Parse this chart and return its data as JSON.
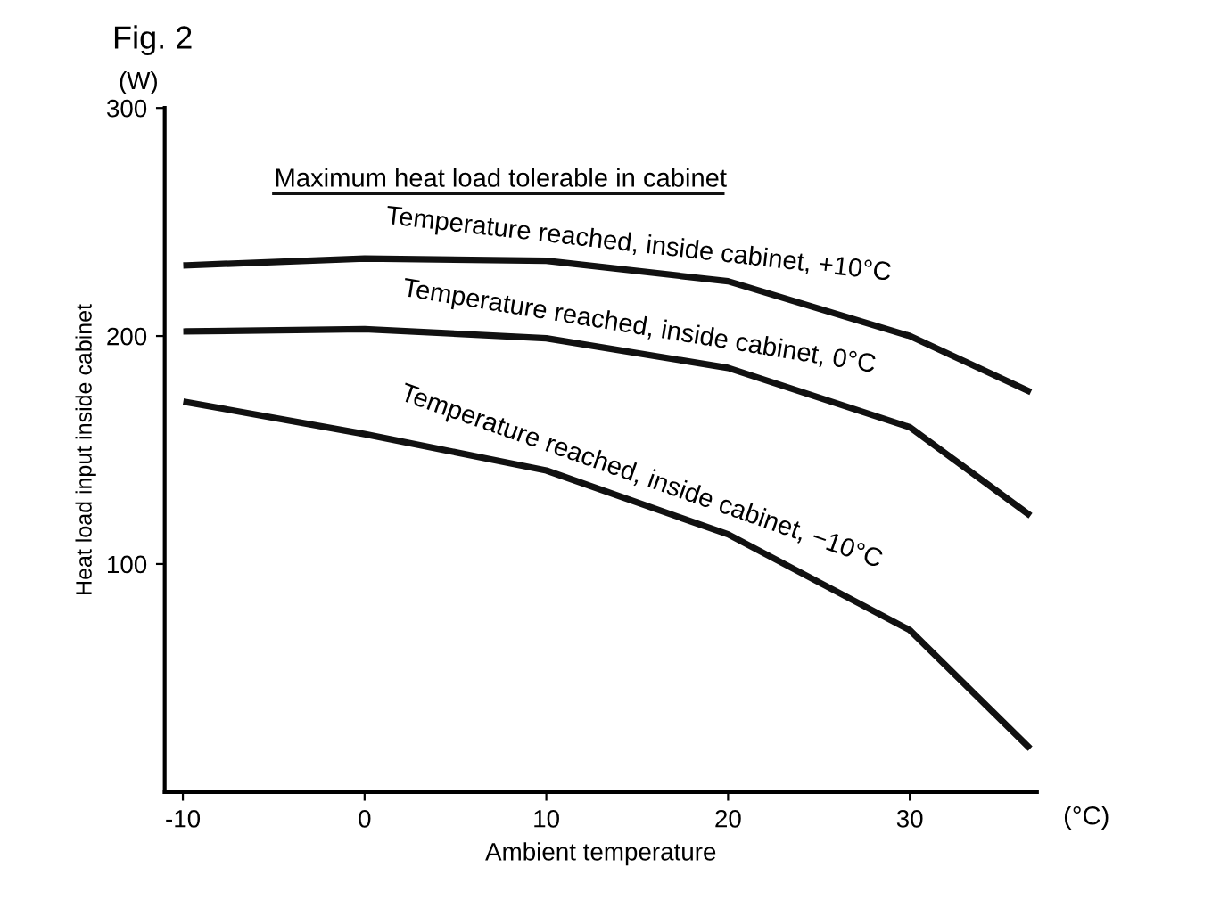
{
  "chart_data": {
    "type": "line",
    "title": "Fig. 2",
    "xlabel": "Ambient temperature",
    "ylabel": "Heat load input inside cabinet",
    "x": [
      -9.8,
      0,
      10,
      20,
      30,
      36.5
    ],
    "series": [
      {
        "name": "Temperature reached, inside cabinet, +10°C",
        "color": "#111111",
        "values": [
          231,
          234,
          233,
          224,
          200,
          176
        ]
      },
      {
        "name": "Temperature reached, inside cabinet, 0°C",
        "color": "#111111",
        "values": [
          202,
          203,
          199,
          186,
          160,
          122
        ]
      },
      {
        "name": "Temperature reached, inside cabinet, −10°C",
        "color": "#111111",
        "values": [
          171,
          157,
          141,
          113,
          71,
          20
        ]
      }
    ],
    "annotations": [
      "Maximum heat load tolerable in cabinet",
      "(W)",
      "(°C)"
    ],
    "xlim": [
      -11,
      37
    ],
    "ylim": [
      0,
      300
    ],
    "xticks": [
      -10,
      0,
      10,
      20,
      30
    ],
    "yticks": [
      100,
      200,
      300
    ],
    "grid": false,
    "legend": false,
    "marker": "none",
    "line_style": "solid"
  }
}
